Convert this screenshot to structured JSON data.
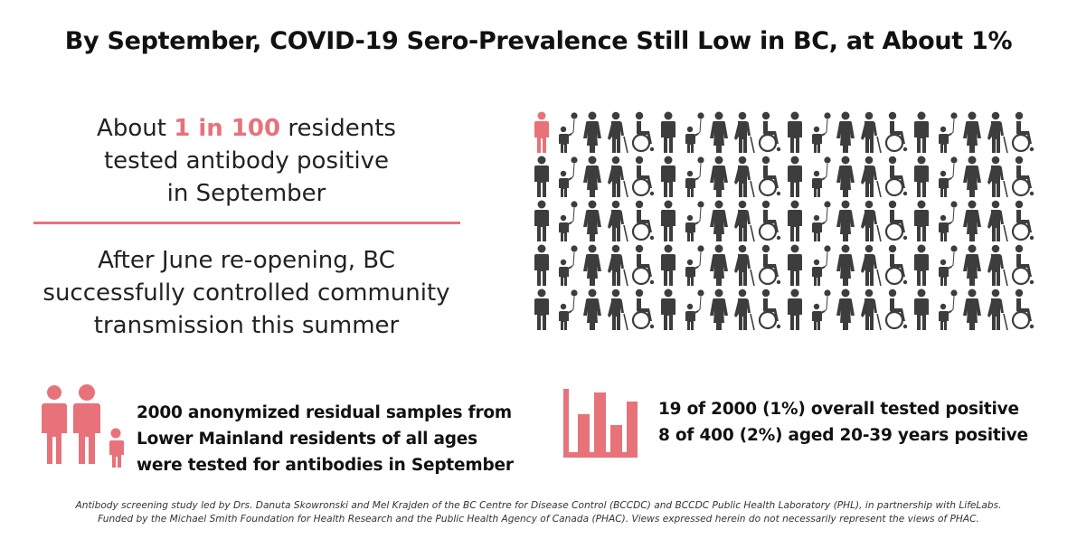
{
  "title": "By September, COVID-19 Sero-Prevalence Still Low in BC, at About 1%",
  "stat_block": {
    "prefix": "About ",
    "highlight": "1 in 100",
    "suffix": " residents",
    "line2": "tested antibody positive",
    "line3": "in September"
  },
  "control_block": {
    "line1": "After June re-opening, BC",
    "line2": "successfully controlled community",
    "line3": "transmission this summer"
  },
  "pictogram": {
    "total": 100,
    "positive": 1,
    "positive_color": "#e8727a",
    "negative_color": "#3d3d3d",
    "figure_cycle": [
      "man-icon",
      "child-balloon-icon",
      "woman-icon",
      "elderly-cane-icon",
      "wheelchair-icon"
    ]
  },
  "samples": {
    "icon": "family-icon",
    "line1": "2000 anonymized residual samples from",
    "line2": "Lower Mainland residents of all ages",
    "line3": "were tested for antibodies in September"
  },
  "results": {
    "icon": "bar-chart-icon",
    "line1": "19 of 2000 (1%) overall tested positive",
    "line2": "8 of 400 (2%) aged 20-39 years positive"
  },
  "footnote": {
    "line1": "Antibody screening study led by Drs. Danuta Skowronski and Mel Krajden of the BC Centre for Disease Control (BCCDC) and BCCDC Public Health Laboratory (PHL), in partnership with LifeLabs.",
    "line2": "Funded by the Michael Smith Foundation for Health Research and  the Public Health Agency of Canada (PHAC). Views expressed herein do not necessarily represent the views of PHAC."
  },
  "colors": {
    "accent": "#e8727a",
    "dark": "#3d3d3d"
  }
}
